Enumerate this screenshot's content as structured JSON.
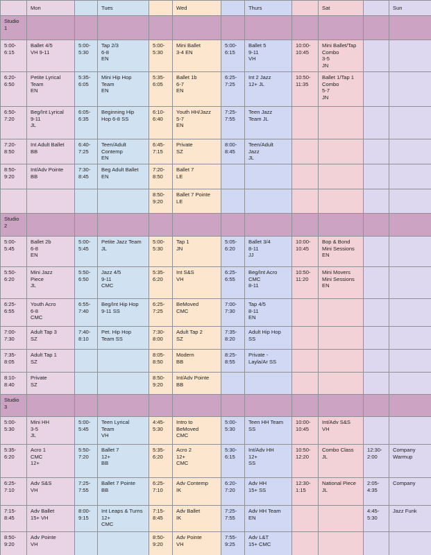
{
  "header": [
    "Mon",
    "Tues",
    "Wed",
    "Thurs",
    "Sat",
    "Sun"
  ],
  "studios": [
    {
      "name": "Studio\n1",
      "rows": [
        [
          "5:00-\n6:15",
          "Ballet 4/5\nVH  9-11",
          "5:00-\n5:30",
          "Tap 2/3\n6-8\nEN",
          "5:00-\n5:30",
          "Mini Ballet\n3-4  EN",
          "5:00-\n6:15",
          "Ballet 5\n9-11\nVH",
          "10:00-\n10:45",
          "Mini Ballet/Tap\nCombo\n3-5\nJN",
          null,
          null
        ],
        [
          "6:20-\n6:50",
          "Petite Lyrical\nTeam\nEN",
          "5:35-\n6:05",
          "Mini Hip Hop\nTeam\nEN",
          "5:35-\n6:05",
          "Ballet 1b\n6-7\nEN",
          "6:25-\n7:25",
          "Int 2 Jazz\n12+  JL",
          "10:50-\n11:35",
          "Ballet 1/Tap 1\nCombo\n5-7\nJN",
          null,
          null
        ],
        [
          "6:50-\n7:20",
          "Beg/Int Lyrical\n9-11\nJL",
          "6:05-\n6:35",
          "Beginning Hip\nHop  6-8  SS",
          "6:10-\n6:40",
          "Youth HH/Jazz\n5-7\nEN",
          "7:25-\n7:55",
          "Teen Jazz\nTeam  JL",
          null,
          null,
          null,
          null
        ],
        [
          "7:20-\n8:50",
          "Int Adult Ballet\nBB",
          "6:40-\n7:25",
          "Teen/Adult\nContemp\nEN",
          "6:45-\n7:15",
          "Private\nSZ",
          "8:00-\n8:45",
          "Teen/Adult\nJazz\nJL",
          null,
          null,
          null,
          null
        ],
        [
          "8:50-\n9:20",
          "Int/Adv Pointe\nBB",
          "7:30-\n8:45",
          "Beg Adult Ballet\nEN",
          "7:20-\n8:50",
          "Ballet 7\nLE",
          null,
          null,
          null,
          null,
          null,
          null
        ],
        [
          null,
          null,
          null,
          null,
          "8:50-\n9:20",
          "Ballet 7 Pointe\nLE",
          null,
          null,
          null,
          null,
          null,
          null
        ]
      ]
    },
    {
      "name": "Studio\n2",
      "rows": [
        [
          "5:00-\n5:45",
          "Ballet 2b\n6-8\nEN",
          "5:00-\n5:45",
          "Petite Jazz Team\nJL",
          "5:00-\n5:30",
          "Tap 1\nJN",
          "5:05-\n6:20",
          "Ballet 3/4\n8-11\nJJ",
          "10:00-\n10:45",
          "Bop & Bond\nMini Sessions\nEN",
          null,
          null
        ],
        [
          "5:50-\n6:20",
          "Mini Jazz\nPiece\nJL",
          "5:50-\n6:50",
          "Jazz 4/5\n9-11\nCMC",
          "5:35-\n6:20",
          "Int S&S\nVH",
          "6:25-\n6:55",
          "Beg/Int Acro\nCMC\n8-11",
          "10:50-\n11:20",
          "Mini Movers\nMini Sessions\nEN",
          null,
          null
        ],
        [
          "6:25-\n6:55",
          "Youth Acro\n6-8\nCMC",
          "6:55-\n7:40",
          "Beg/Int Hip Hop\n9-11  SS",
          "6:25-\n7:25",
          "BeMoved\nCMC",
          "7:00-\n7:30",
          "Tap 4/5\n8-11\nEN",
          null,
          null,
          null,
          null
        ],
        [
          "7:00-\n7:30",
          "Adult Tap 3\nSZ",
          "7:40-\n8:10",
          "Pet. Hip Hop\nTeam  SS",
          "7:30-\n8:00",
          "Adult Tap 2\nSZ",
          "7:35-\n8:20",
          "Adult Hip Hop\nSS",
          null,
          null,
          null,
          null
        ],
        [
          "7:35-\n8:05",
          "Adult Tap 1\nSZ",
          null,
          null,
          "8:05-\n8:50",
          "Modern\nBB",
          "8:25-\n8:55",
          "Private -\nLayla/Ar SS",
          null,
          null,
          null,
          null
        ],
        [
          "8:10-\n8:40",
          "Private\nSZ",
          null,
          null,
          "8:50-\n9:20",
          "Int/Adv Pointe\nBB",
          null,
          null,
          null,
          null,
          null,
          null
        ]
      ]
    },
    {
      "name": "Studio\n3",
      "rows": [
        [
          "5:00-\n5:30",
          "Mini HH\n3-5\nJL",
          "5:00-\n5:45",
          "Teen Lyrical\nTeam\nVH",
          "4:45-\n5:30",
          "Intro to\nBeMoved\nCMC",
          "5:00-\n5:30",
          "Teen HH Team\nSS",
          "10:00-\n10:45",
          "Int/Adv S&S\nVH",
          null,
          null
        ],
        [
          "5:35-\n6:20",
          "Acro 1\nCMC\n12+",
          "5:50-\n7:20",
          "Ballet 7\n12+\nBB",
          "5:35-\n6:20",
          "Acro 2\n12+\nCMC",
          "5:30-\n6:15",
          "Int/Adv HH\n12+\nSS",
          "10:50-\n12:20",
          "Combo Class\nJL",
          "12:30-\n2:00",
          "Company\nWarmup"
        ],
        [
          "6:25-\n7:10",
          "Adv S&S\nVH",
          "7:25-\n7:55",
          "Ballet 7 Pointe\nBB",
          "6:25-\n7:10",
          "Adv Contemp\nIK",
          "6:20-\n7:20",
          "Adv HH\n15+  SS",
          "12:30-\n1:15",
          "National Piece\nJL",
          "2:05-\n4:35",
          "Company"
        ],
        [
          "7:15-\n8:45",
          "Adv Ballet\n15+  VH",
          "8:00-\n9:15",
          "Int Leaps & Turns\n12+\nCMC",
          "7:15-\n8:45",
          "Adv Ballet\nIK",
          "7:25-\n7:55",
          "Adv HH Team\nEN",
          null,
          null,
          "4:45-\n5:30",
          "Jazz Funk"
        ],
        [
          "8:50-\n9:20",
          "Adv Pointe\nVH",
          null,
          null,
          "8:50-\n9:20",
          "Adv Pointe\nVH",
          "7:55-\n9:25",
          "Adv L&T\n15+  CMC",
          null,
          null,
          null,
          null
        ]
      ]
    }
  ]
}
